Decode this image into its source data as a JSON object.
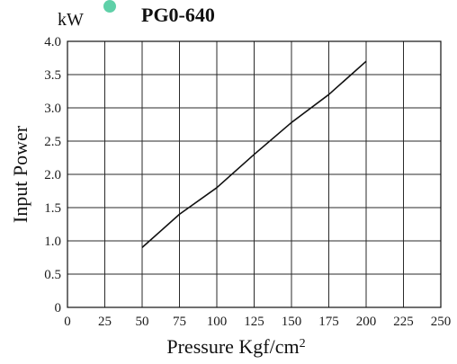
{
  "chart_data": {
    "type": "line",
    "title": "PG0-640",
    "marker_color": "#5fd0a8",
    "xlabel": "Pressure Kgf/cm",
    "xlabel_superscript": "2",
    "ylabel": "Input Power",
    "y_unit": "kW",
    "xlim": [
      0,
      250
    ],
    "ylim": [
      0,
      4.0
    ],
    "x_ticks": [
      "0",
      "25",
      "50",
      "75",
      "100",
      "125",
      "150",
      "175",
      "200",
      "225",
      "250"
    ],
    "y_ticks": [
      "0",
      "0.5",
      "1.0",
      "1.5",
      "2.0",
      "2.5",
      "3.0",
      "3.5",
      "4.0"
    ],
    "grid": true,
    "series": [
      {
        "color": "#111111",
        "points": [
          [
            50,
            0.9
          ],
          [
            75,
            1.4
          ],
          [
            100,
            1.8
          ],
          [
            125,
            2.3
          ],
          [
            150,
            2.78
          ],
          [
            175,
            3.2
          ],
          [
            200,
            3.7
          ]
        ]
      }
    ]
  }
}
